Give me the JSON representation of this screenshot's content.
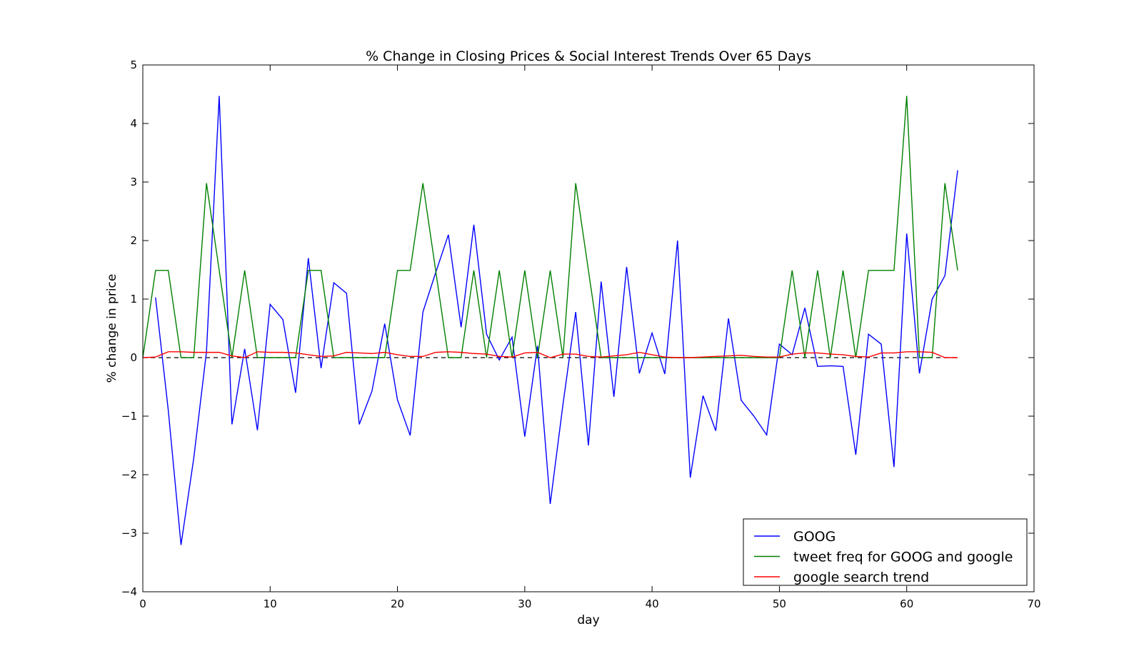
{
  "chart_data": {
    "type": "line",
    "title": "% Change in Closing Prices & Social Interest Trends Over 65 Days",
    "xlabel": "day",
    "ylabel": "% change in price",
    "xlim": [
      0,
      70
    ],
    "ylim": [
      -4,
      5
    ],
    "xticks": [
      0,
      10,
      20,
      30,
      40,
      50,
      60,
      70
    ],
    "yticks": [
      -4,
      -3,
      -2,
      -1,
      0,
      1,
      2,
      3,
      4,
      5
    ],
    "xtick_labels": [
      "0",
      "10",
      "20",
      "30",
      "40",
      "50",
      "60",
      "70"
    ],
    "ytick_labels": [
      "−4",
      "−3",
      "−2",
      "−1",
      "0",
      "1",
      "2",
      "3",
      "4",
      "5"
    ],
    "grid": false,
    "legend_position": "lower-right",
    "reference_line": {
      "y": 0,
      "style": "dashed",
      "color": "#000000"
    },
    "series": [
      {
        "name": "GOOG",
        "color": "#0000ff",
        "x": [
          1,
          2,
          3,
          4,
          5,
          6,
          7,
          8,
          9,
          10,
          11,
          12,
          13,
          14,
          15,
          16,
          17,
          18,
          19,
          20,
          21,
          22,
          23,
          24,
          25,
          26,
          27,
          28,
          29,
          30,
          31,
          32,
          33,
          34,
          35,
          36,
          37,
          38,
          39,
          40,
          41,
          42,
          43,
          44,
          45,
          46,
          47,
          48,
          49,
          50,
          51,
          52,
          53,
          54,
          55,
          56,
          57,
          58,
          59,
          60,
          61,
          62,
          63,
          64
        ],
        "values": [
          1.03,
          -0.9,
          -3.2,
          -1.72,
          0.1,
          4.47,
          -1.14,
          0.15,
          -1.24,
          0.91,
          0.65,
          -0.6,
          1.7,
          -0.18,
          1.28,
          1.1,
          -1.14,
          -0.57,
          0.58,
          -0.72,
          -1.33,
          0.78,
          1.45,
          2.1,
          0.52,
          2.27,
          0.4,
          -0.04,
          0.35,
          -1.35,
          0.2,
          -2.5,
          -0.8,
          0.78,
          -1.5,
          1.3,
          -0.67,
          1.55,
          -0.27,
          0.42,
          -0.28,
          2.0,
          -2.05,
          -0.65,
          -1.25,
          0.67,
          -0.73,
          -1.0,
          -1.32,
          0.23,
          0.05,
          0.85,
          -0.15,
          -0.14,
          -0.15,
          -1.66,
          0.4,
          0.23,
          -1.87,
          2.12,
          -0.27,
          1.0,
          1.4,
          3.2
        ]
      },
      {
        "name": "tweet freq for GOOG and google",
        "color": "#008000",
        "x": [
          0,
          1,
          2,
          3,
          4,
          5,
          6,
          7,
          8,
          9,
          10,
          11,
          12,
          13,
          14,
          15,
          16,
          17,
          18,
          19,
          20,
          21,
          22,
          23,
          24,
          25,
          26,
          27,
          28,
          29,
          30,
          31,
          32,
          33,
          34,
          35,
          36,
          37,
          38,
          39,
          40,
          41,
          42,
          43,
          44,
          45,
          46,
          47,
          48,
          49,
          50,
          51,
          52,
          53,
          54,
          55,
          56,
          57,
          58,
          59,
          60,
          61,
          62,
          63,
          64
        ],
        "values": [
          0,
          1.49,
          1.49,
          0,
          0,
          2.98,
          1.49,
          0,
          1.49,
          0,
          0,
          0,
          0,
          1.49,
          1.49,
          0,
          0,
          0,
          0,
          0,
          1.49,
          1.49,
          2.98,
          1.49,
          0,
          0,
          1.49,
          0,
          1.49,
          0,
          1.49,
          0,
          1.49,
          0,
          2.98,
          1.49,
          0,
          0,
          0,
          0,
          0,
          0,
          0,
          0,
          0,
          0,
          0,
          0,
          0,
          0,
          0,
          1.49,
          0,
          1.49,
          0,
          1.49,
          0,
          1.49,
          1.49,
          1.49,
          4.47,
          0,
          0,
          2.98,
          1.49
        ]
      },
      {
        "name": "google search trend",
        "color": "#ff0000",
        "x": [
          0,
          1,
          2,
          3,
          4,
          5,
          6,
          7,
          8,
          9,
          10,
          11,
          12,
          13,
          14,
          15,
          16,
          17,
          18,
          19,
          20,
          21,
          22,
          23,
          24,
          25,
          26,
          27,
          28,
          29,
          30,
          31,
          32,
          33,
          34,
          35,
          36,
          37,
          38,
          39,
          40,
          41,
          42,
          43,
          44,
          45,
          46,
          47,
          48,
          49,
          50,
          51,
          52,
          53,
          54,
          55,
          56,
          57,
          58,
          59,
          60,
          61,
          62,
          63,
          64
        ],
        "values": [
          0,
          0.01,
          0.1,
          0.1,
          0.09,
          0.09,
          0.09,
          0.03,
          0,
          0.1,
          0.09,
          0.09,
          0.08,
          0.05,
          0.02,
          0.03,
          0.09,
          0.08,
          0.07,
          0.09,
          0.05,
          0.02,
          0.02,
          0.09,
          0.1,
          0.09,
          0.07,
          0.06,
          0.02,
          0.01,
          0.08,
          0.09,
          0,
          0.06,
          0.06,
          0.02,
          0.01,
          0.03,
          0.05,
          0.09,
          0.05,
          0.01,
          0,
          0,
          0.01,
          0.02,
          0.03,
          0.04,
          0.02,
          0.01,
          0.01,
          0.06,
          0.08,
          0.08,
          0.06,
          0.05,
          0.02,
          0.01,
          0.08,
          0.08,
          0.1,
          0.1,
          0.09,
          0,
          0
        ]
      }
    ]
  }
}
